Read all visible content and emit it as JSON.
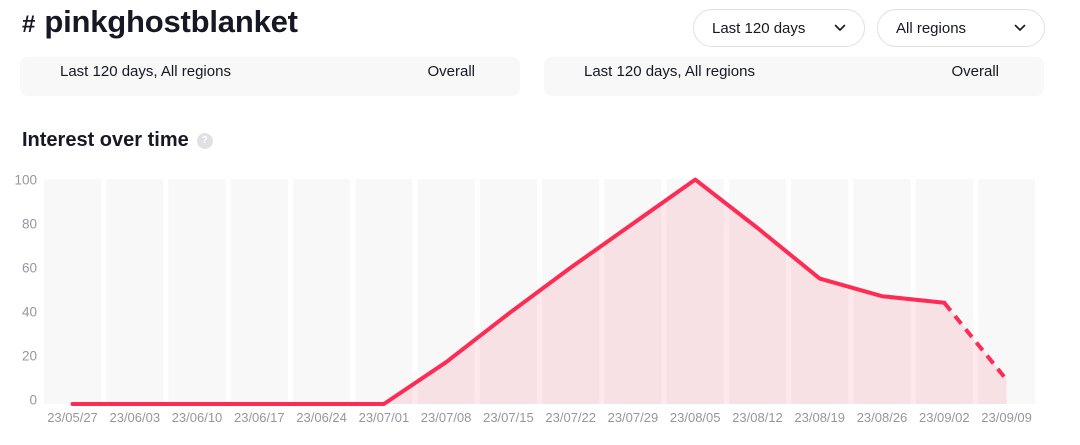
{
  "header": {
    "hashtag_symbol": "#",
    "title": "pinkghostblanket",
    "filters": {
      "date_range": "Last 120 days",
      "region": "All regions"
    }
  },
  "summary_cards": [
    {
      "filter_summary": "Last 120 days, All regions",
      "tab": "Overall"
    },
    {
      "filter_summary": "Last 120 days, All regions",
      "tab": "Overall"
    }
  ],
  "section": {
    "title": "Interest over time",
    "help_glyph": "?"
  },
  "chart_data": {
    "type": "area",
    "title": "Interest over time",
    "x": [
      "23/05/27",
      "23/06/03",
      "23/06/10",
      "23/06/17",
      "23/06/24",
      "23/07/01",
      "23/07/08",
      "23/07/15",
      "23/07/22",
      "23/07/29",
      "23/08/05",
      "23/08/12",
      "23/08/19",
      "23/08/26",
      "23/09/02",
      "23/09/09"
    ],
    "values": [
      0,
      0,
      0,
      0,
      0,
      0,
      19,
      41,
      62,
      82,
      102,
      80,
      57,
      49,
      46,
      11
    ],
    "dashed_from_index": 14,
    "xlabel": "",
    "ylabel": "",
    "y_ticks": [
      0,
      20,
      40,
      60,
      80,
      100
    ],
    "ylim": [
      0,
      100
    ],
    "grid": "weekly vertical bands, no horizontal gridlines",
    "legend": "none",
    "notes": "final segment (23/09/02 to 23/09/09) rendered dashed as incomplete/projected data"
  },
  "colors": {
    "accent": "#FE2C55",
    "area_fill": "rgba(254,44,85,0.11)",
    "band": "#F8F8F8",
    "axis_label": "#95979E",
    "text": "#161823",
    "pill_border": "#E0E0E0",
    "card_bg": "#F8F8F8",
    "help_bg": "#E1E1E5"
  }
}
